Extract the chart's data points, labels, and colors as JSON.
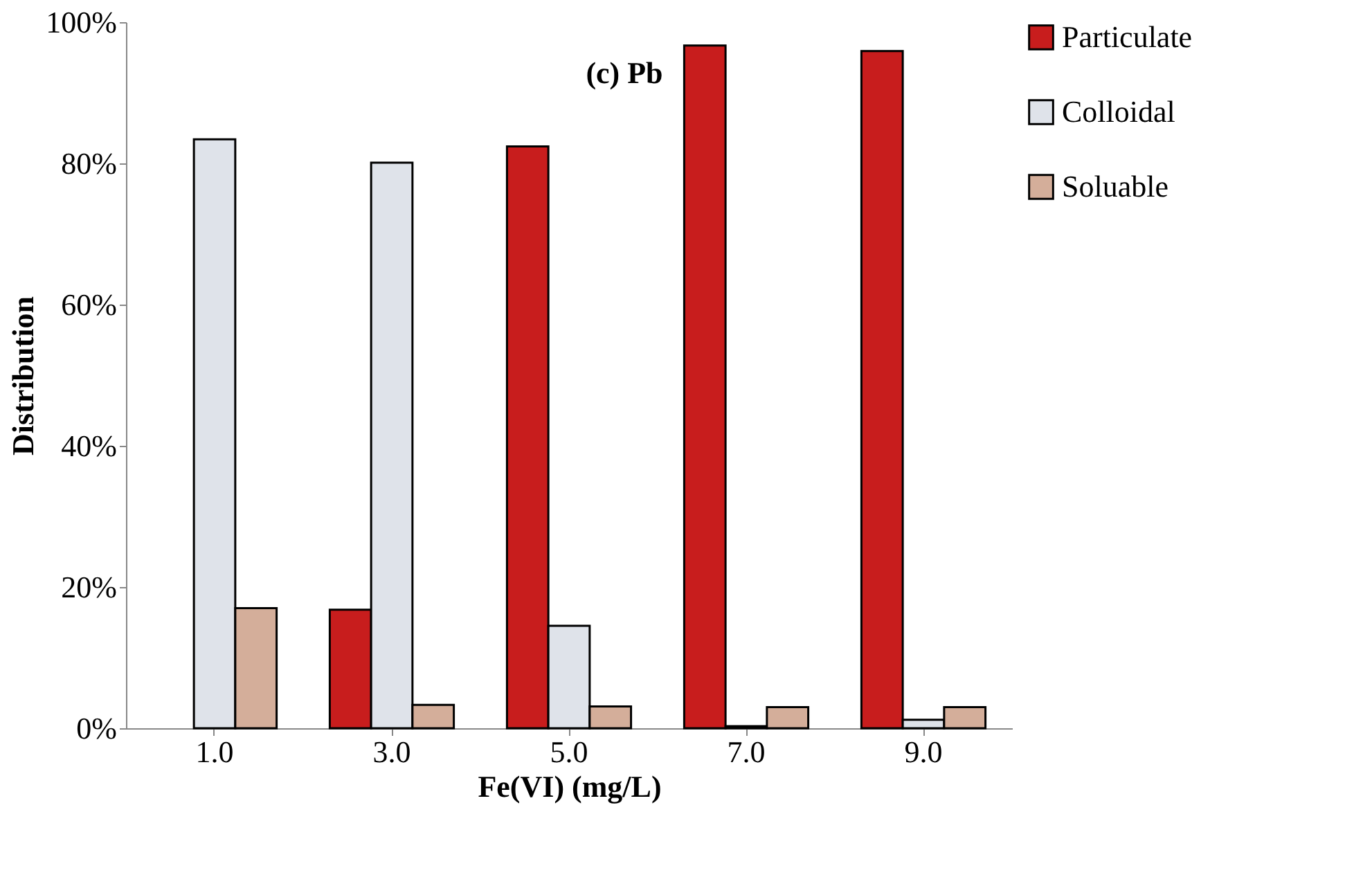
{
  "chart_data": {
    "type": "bar",
    "title": "(c) Pb",
    "xlabel": "Fe(VI) (mg/L)",
    "ylabel": "Distribution",
    "categories": [
      "1.0",
      "3.0",
      "5.0",
      "7.0",
      "9.0"
    ],
    "series": [
      {
        "name": "Particulate",
        "color": "#c81d1d",
        "values": [
          0,
          16.8,
          82.4,
          96.7,
          95.9
        ]
      },
      {
        "name": "Colloidal",
        "color": "#dfe3ea",
        "values": [
          83.4,
          80.1,
          14.5,
          0.3,
          1.2
        ]
      },
      {
        "name": "Soluable",
        "color": "#d4ae9a",
        "values": [
          17.0,
          3.3,
          3.1,
          3.0,
          3.0
        ]
      }
    ],
    "ylim": [
      0,
      100
    ],
    "yticks": [
      {
        "value": 0,
        "label": "0%"
      },
      {
        "value": 20,
        "label": "20%"
      },
      {
        "value": 40,
        "label": "40%"
      },
      {
        "value": 60,
        "label": "60%"
      },
      {
        "value": 80,
        "label": "80%"
      },
      {
        "value": 100,
        "label": "100%"
      }
    ],
    "legend": "right",
    "grid": false
  }
}
